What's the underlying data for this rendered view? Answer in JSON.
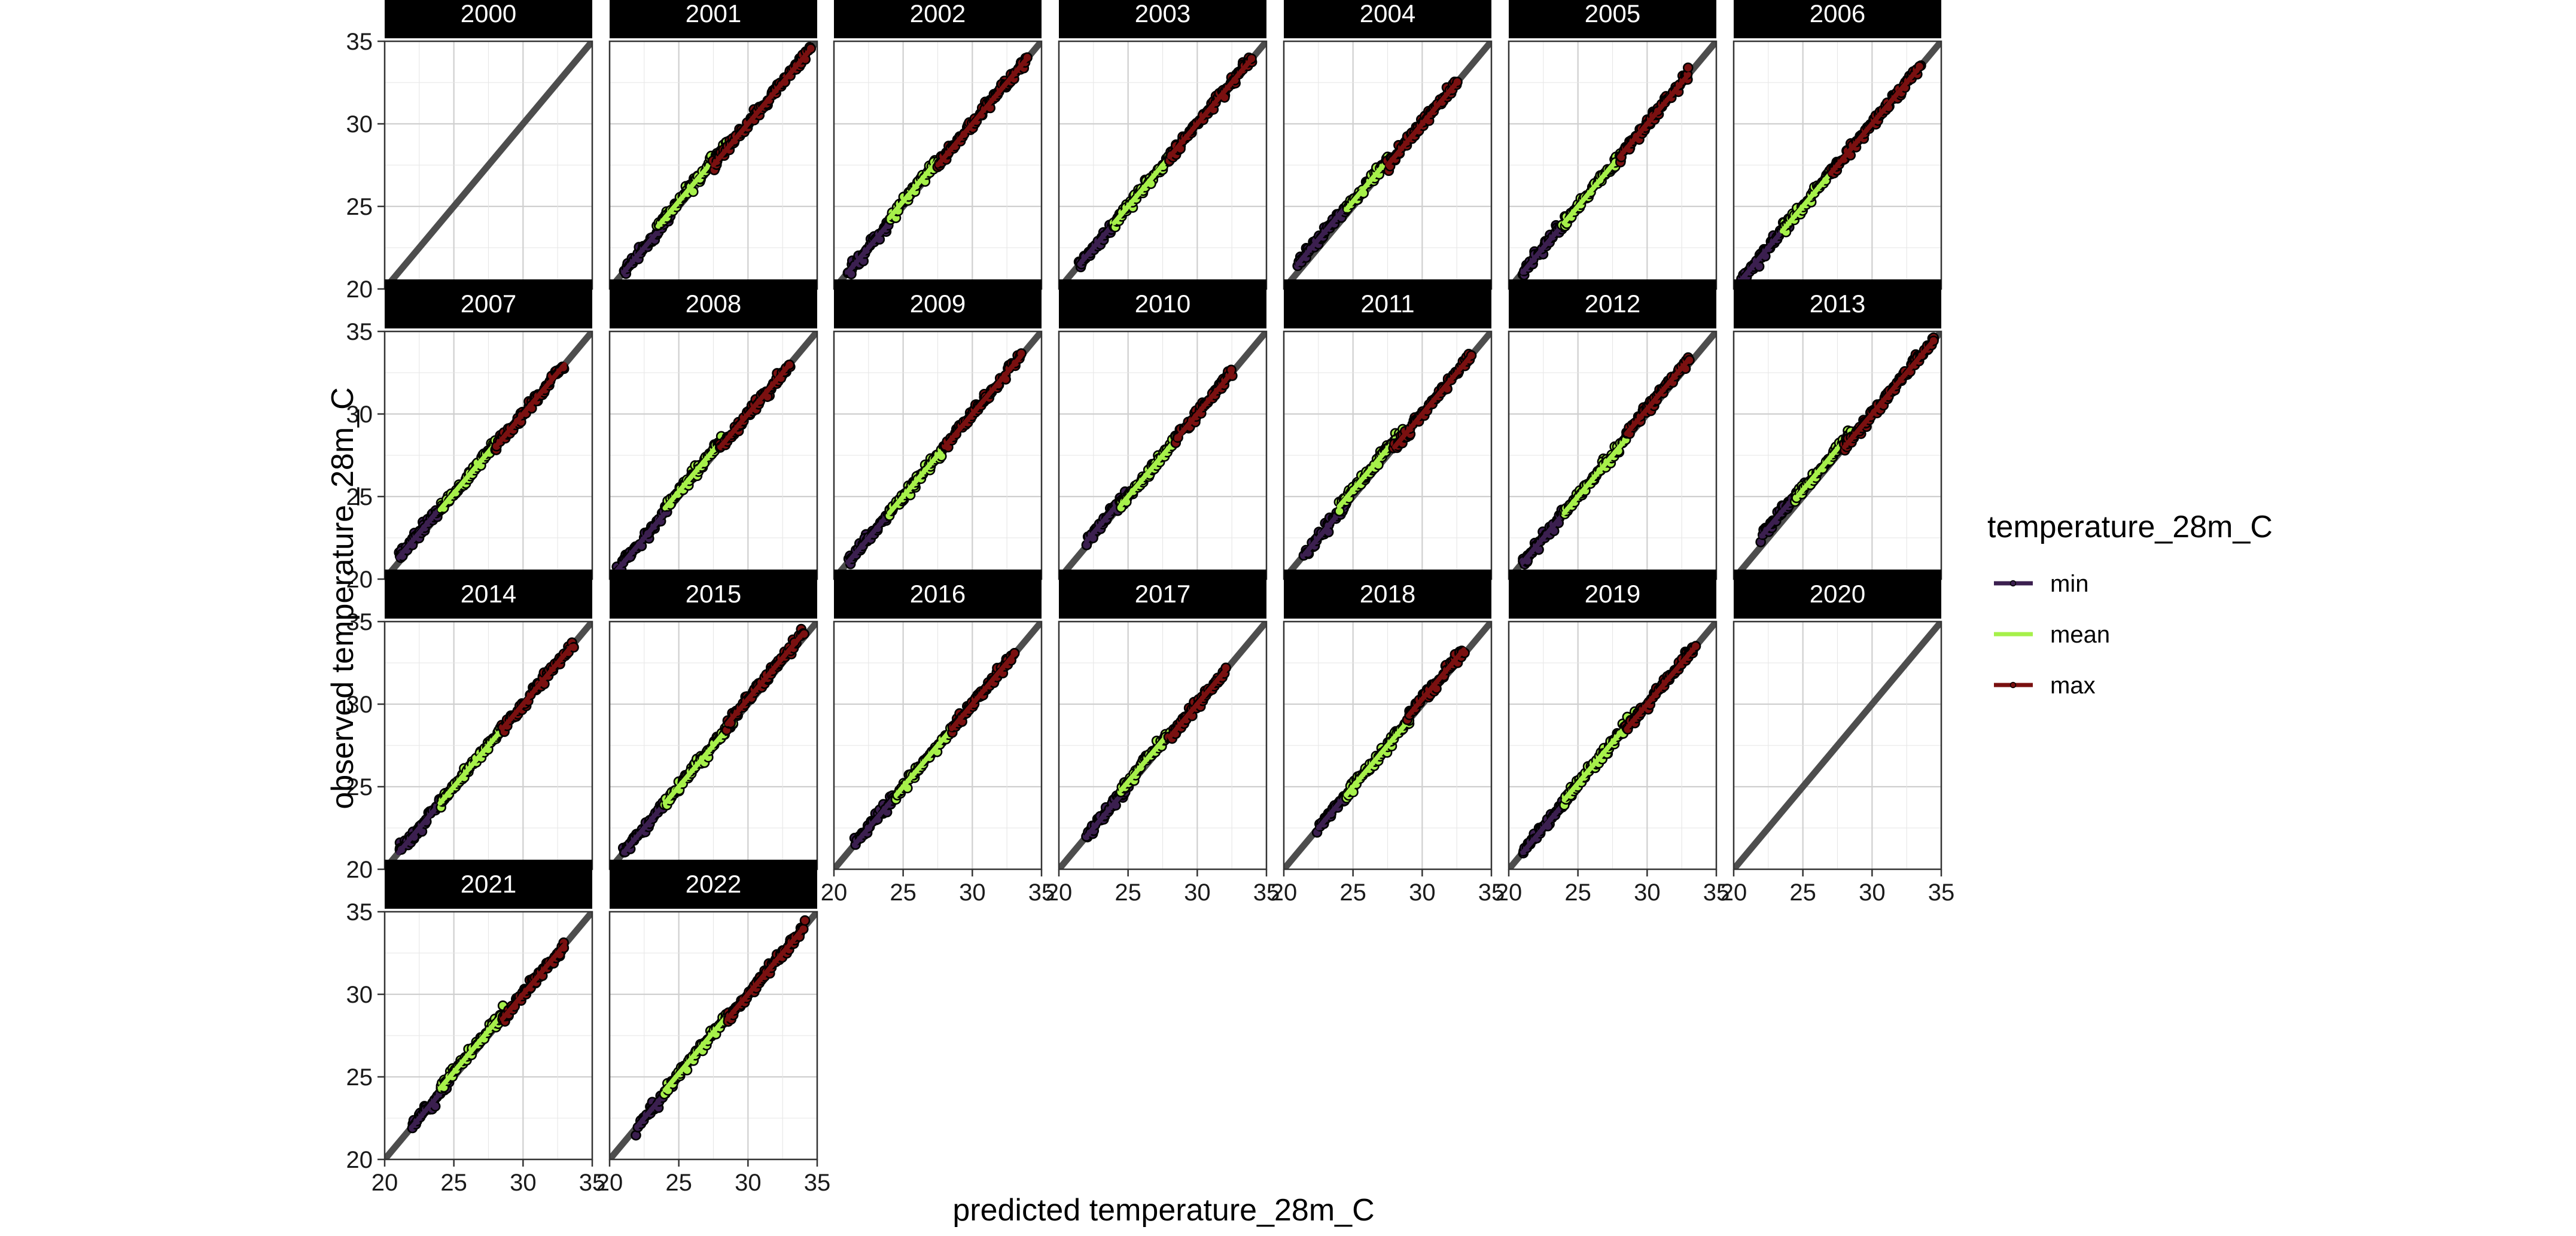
{
  "chart_data": {
    "type": "scatter",
    "xlabel": "predicted temperature_28m_C",
    "ylabel": "observed temperature_28m_C",
    "xlim": [
      20,
      35
    ],
    "ylim": [
      20,
      35
    ],
    "x_ticks": [
      20,
      25,
      30,
      35
    ],
    "y_ticks": [
      20,
      25,
      30,
      35
    ],
    "grid": true,
    "reference_line": "y = x",
    "legend": {
      "title": "temperature_28m_C",
      "placement": "right",
      "entries": [
        {
          "label": "min",
          "color": "#3b1f4f"
        },
        {
          "label": "mean",
          "color": "#a6f04a"
        },
        {
          "label": "max",
          "color": "#7a1010"
        }
      ]
    },
    "panels": [
      {
        "year": "2000",
        "series": []
      },
      {
        "year": "2001",
        "series": [
          {
            "name": "min",
            "x_range": [
              21.0,
              24.5
            ],
            "offset": 0.0
          },
          {
            "name": "mean",
            "x_range": [
              23.5,
              28.5
            ],
            "offset": 0.3
          },
          {
            "name": "max",
            "x_range": [
              27.5,
              34.5
            ],
            "offset": 0.0
          }
        ]
      },
      {
        "year": "2002",
        "series": [
          {
            "name": "min",
            "x_range": [
              21.0,
              24.0
            ],
            "offset": 0.0
          },
          {
            "name": "mean",
            "x_range": [
              24.0,
              27.5
            ],
            "offset": 0.3
          },
          {
            "name": "max",
            "x_range": [
              27.5,
              34.0
            ],
            "offset": 0.0
          }
        ]
      },
      {
        "year": "2003",
        "series": [
          {
            "name": "min",
            "x_range": [
              21.5,
              24.5
            ],
            "offset": 0.0
          },
          {
            "name": "mean",
            "x_range": [
              24.0,
              28.5
            ],
            "offset": 0.0
          },
          {
            "name": "max",
            "x_range": [
              28.0,
              34.0
            ],
            "offset": 0.0
          }
        ]
      },
      {
        "year": "2004",
        "series": [
          {
            "name": "min",
            "x_range": [
              21.0,
              24.5
            ],
            "offset": 0.5
          },
          {
            "name": "mean",
            "x_range": [
              24.5,
              27.5
            ],
            "offset": 0.3
          },
          {
            "name": "max",
            "x_range": [
              27.5,
              32.5
            ],
            "offset": 0.0
          }
        ]
      },
      {
        "year": "2005",
        "series": [
          {
            "name": "min",
            "x_range": [
              21.0,
              24.0
            ],
            "offset": 0.0
          },
          {
            "name": "mean",
            "x_range": [
              24.0,
              28.0
            ],
            "offset": 0.0
          },
          {
            "name": "max",
            "x_range": [
              28.0,
              33.0
            ],
            "offset": 0.0
          }
        ]
      },
      {
        "year": "2006",
        "series": [
          {
            "name": "min",
            "x_range": [
              20.5,
              24.0
            ],
            "offset": 0.0
          },
          {
            "name": "mean",
            "x_range": [
              23.5,
              27.5
            ],
            "offset": 0.0
          },
          {
            "name": "max",
            "x_range": [
              27.0,
              33.5
            ],
            "offset": 0.0
          }
        ]
      },
      {
        "year": "2007",
        "series": [
          {
            "name": "min",
            "x_range": [
              21.0,
              24.0
            ],
            "offset": 0.3
          },
          {
            "name": "mean",
            "x_range": [
              24.0,
              28.0
            ],
            "offset": 0.2
          },
          {
            "name": "max",
            "x_range": [
              28.0,
              33.0
            ],
            "offset": 0.0
          }
        ]
      },
      {
        "year": "2008",
        "series": [
          {
            "name": "min",
            "x_range": [
              20.5,
              24.0
            ],
            "offset": 0.0
          },
          {
            "name": "mean",
            "x_range": [
              24.0,
              28.0
            ],
            "offset": 0.3
          },
          {
            "name": "max",
            "x_range": [
              28.0,
              33.0
            ],
            "offset": 0.0
          }
        ]
      },
      {
        "year": "2009",
        "series": [
          {
            "name": "min",
            "x_range": [
              21.0,
              24.0
            ],
            "offset": 0.0
          },
          {
            "name": "mean",
            "x_range": [
              24.0,
              28.0
            ],
            "offset": 0.0
          },
          {
            "name": "max",
            "x_range": [
              28.0,
              33.5
            ],
            "offset": 0.0
          }
        ]
      },
      {
        "year": "2010",
        "series": [
          {
            "name": "min",
            "x_range": [
              22.0,
              25.0
            ],
            "offset": 0.3
          },
          {
            "name": "mean",
            "x_range": [
              24.5,
              28.5
            ],
            "offset": 0.0
          },
          {
            "name": "max",
            "x_range": [
              28.5,
              32.5
            ],
            "offset": 0.0
          }
        ]
      },
      {
        "year": "2011",
        "series": [
          {
            "name": "min",
            "x_range": [
              21.5,
              24.5
            ],
            "offset": 0.0
          },
          {
            "name": "mean",
            "x_range": [
              24.0,
              28.5
            ],
            "offset": 0.4
          },
          {
            "name": "max",
            "x_range": [
              28.0,
              33.5
            ],
            "offset": 0.0
          }
        ]
      },
      {
        "year": "2012",
        "series": [
          {
            "name": "min",
            "x_range": [
              21.0,
              24.5
            ],
            "offset": 0.0
          },
          {
            "name": "mean",
            "x_range": [
              24.0,
              28.5
            ],
            "offset": 0.0
          },
          {
            "name": "max",
            "x_range": [
              28.5,
              33.0
            ],
            "offset": 0.3
          }
        ]
      },
      {
        "year": "2013",
        "series": [
          {
            "name": "min",
            "x_range": [
              22.0,
              25.0
            ],
            "offset": 0.6
          },
          {
            "name": "mean",
            "x_range": [
              24.5,
              28.5
            ],
            "offset": 0.4
          },
          {
            "name": "max",
            "x_range": [
              28.0,
              34.5
            ],
            "offset": 0.0
          }
        ]
      },
      {
        "year": "2014",
        "series": [
          {
            "name": "min",
            "x_range": [
              21.0,
              24.5
            ],
            "offset": 0.0
          },
          {
            "name": "mean",
            "x_range": [
              24.0,
              28.5
            ],
            "offset": 0.0
          },
          {
            "name": "max",
            "x_range": [
              28.5,
              33.5
            ],
            "offset": 0.0
          }
        ]
      },
      {
        "year": "2015",
        "series": [
          {
            "name": "min",
            "x_range": [
              21.0,
              24.5
            ],
            "offset": 0.0
          },
          {
            "name": "mean",
            "x_range": [
              24.0,
              29.0
            ],
            "offset": 0.0
          },
          {
            "name": "max",
            "x_range": [
              28.5,
              34.0
            ],
            "offset": 0.3
          }
        ]
      },
      {
        "year": "2016",
        "series": [
          {
            "name": "min",
            "x_range": [
              21.5,
              24.5
            ],
            "offset": 0.0
          },
          {
            "name": "mean",
            "x_range": [
              24.5,
              28.5
            ],
            "offset": 0.0
          },
          {
            "name": "max",
            "x_range": [
              28.5,
              33.0
            ],
            "offset": 0.0
          }
        ]
      },
      {
        "year": "2017",
        "series": [
          {
            "name": "min",
            "x_range": [
              22.0,
              25.0
            ],
            "offset": 0.0
          },
          {
            "name": "mean",
            "x_range": [
              24.5,
              28.0
            ],
            "offset": 0.3
          },
          {
            "name": "max",
            "x_range": [
              28.0,
              32.0
            ],
            "offset": 0.0
          }
        ]
      },
      {
        "year": "2018",
        "series": [
          {
            "name": "min",
            "x_range": [
              22.5,
              25.0
            ],
            "offset": 0.0
          },
          {
            "name": "mean",
            "x_range": [
              24.5,
              29.0
            ],
            "offset": 0.0
          },
          {
            "name": "max",
            "x_range": [
              29.0,
              33.0
            ],
            "offset": 0.3
          }
        ]
      },
      {
        "year": "2019",
        "series": [
          {
            "name": "min",
            "x_range": [
              21.0,
              24.5
            ],
            "offset": 0.0
          },
          {
            "name": "mean",
            "x_range": [
              24.0,
              29.0
            ],
            "offset": 0.2
          },
          {
            "name": "max",
            "x_range": [
              28.5,
              33.5
            ],
            "offset": 0.0
          }
        ]
      },
      {
        "year": "2020",
        "series": []
      },
      {
        "year": "2021",
        "series": [
          {
            "name": "min",
            "x_range": [
              22.0,
              24.5
            ],
            "offset": 0.0
          },
          {
            "name": "mean",
            "x_range": [
              24.0,
              28.5
            ],
            "offset": 0.3
          },
          {
            "name": "max",
            "x_range": [
              28.5,
              33.0
            ],
            "offset": 0.0
          }
        ]
      },
      {
        "year": "2022",
        "series": [
          {
            "name": "min",
            "x_range": [
              22.0,
              24.5
            ],
            "offset": 0.0
          },
          {
            "name": "mean",
            "x_range": [
              24.0,
              28.5
            ],
            "offset": 0.2
          },
          {
            "name": "max",
            "x_range": [
              28.5,
              34.0
            ],
            "offset": 0.0
          }
        ]
      }
    ]
  }
}
